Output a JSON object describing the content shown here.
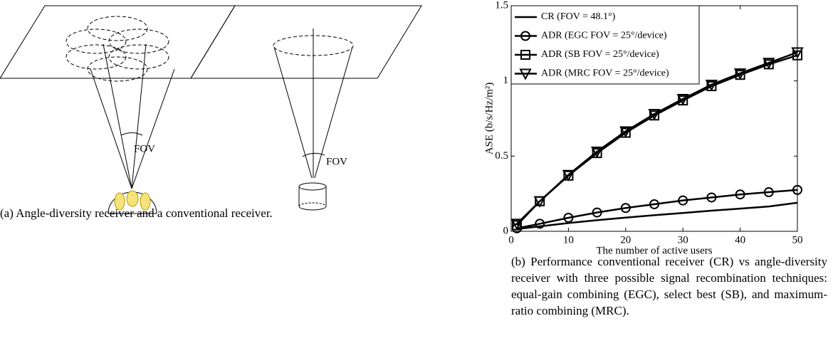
{
  "figure_a": {
    "fov_labels": [
      "FOV",
      "FOV"
    ],
    "caption": "(a) Angle-diversity receiver and a conventional receiver."
  },
  "chart_data": {
    "type": "line",
    "x_label": "The number of active users",
    "y_label": "ASE (b/s/Hz/m²)",
    "x": [
      1,
      5,
      10,
      15,
      20,
      25,
      30,
      35,
      40,
      45,
      50
    ],
    "series": [
      {
        "name": "CR (FOV = 48.1°)",
        "color": "#000000",
        "marker": "none",
        "values": [
          0.015,
          0.033,
          0.055,
          0.074,
          0.091,
          0.107,
          0.122,
          0.137,
          0.151,
          0.165,
          0.19
        ]
      },
      {
        "name": "ADR (EGC FOV = 25°/device)",
        "color": "#000000",
        "marker": "circle",
        "values": [
          0.02,
          0.05,
          0.09,
          0.125,
          0.155,
          0.18,
          0.205,
          0.225,
          0.245,
          0.26,
          0.275
        ]
      },
      {
        "name": "ADR (SB FOV = 25°/device)",
        "color": "#000000",
        "marker": "square",
        "values": [
          0.04,
          0.2,
          0.37,
          0.52,
          0.655,
          0.77,
          0.87,
          0.965,
          1.04,
          1.11,
          1.17
        ]
      },
      {
        "name": "ADR (MRC FOV = 25°/device)",
        "color": "#000000",
        "marker": "triangle-down",
        "values": [
          0.05,
          0.2,
          0.375,
          0.53,
          0.665,
          0.78,
          0.88,
          0.975,
          1.05,
          1.12,
          1.19
        ]
      }
    ],
    "xlim": [
      0,
      50
    ],
    "xticks": [
      0,
      10,
      20,
      30,
      40,
      50
    ],
    "ylim": [
      0,
      1.5
    ],
    "yticks": [
      0,
      0.5,
      1,
      1.5
    ],
    "legend": "upper left",
    "caption": "(b) Performance conventional receiver (CR) vs angle-diversity receiver with three possible signal recombination techniques: equal-gain combining (EGC), select best (SB), and maximum-ratio combining (MRC)."
  }
}
